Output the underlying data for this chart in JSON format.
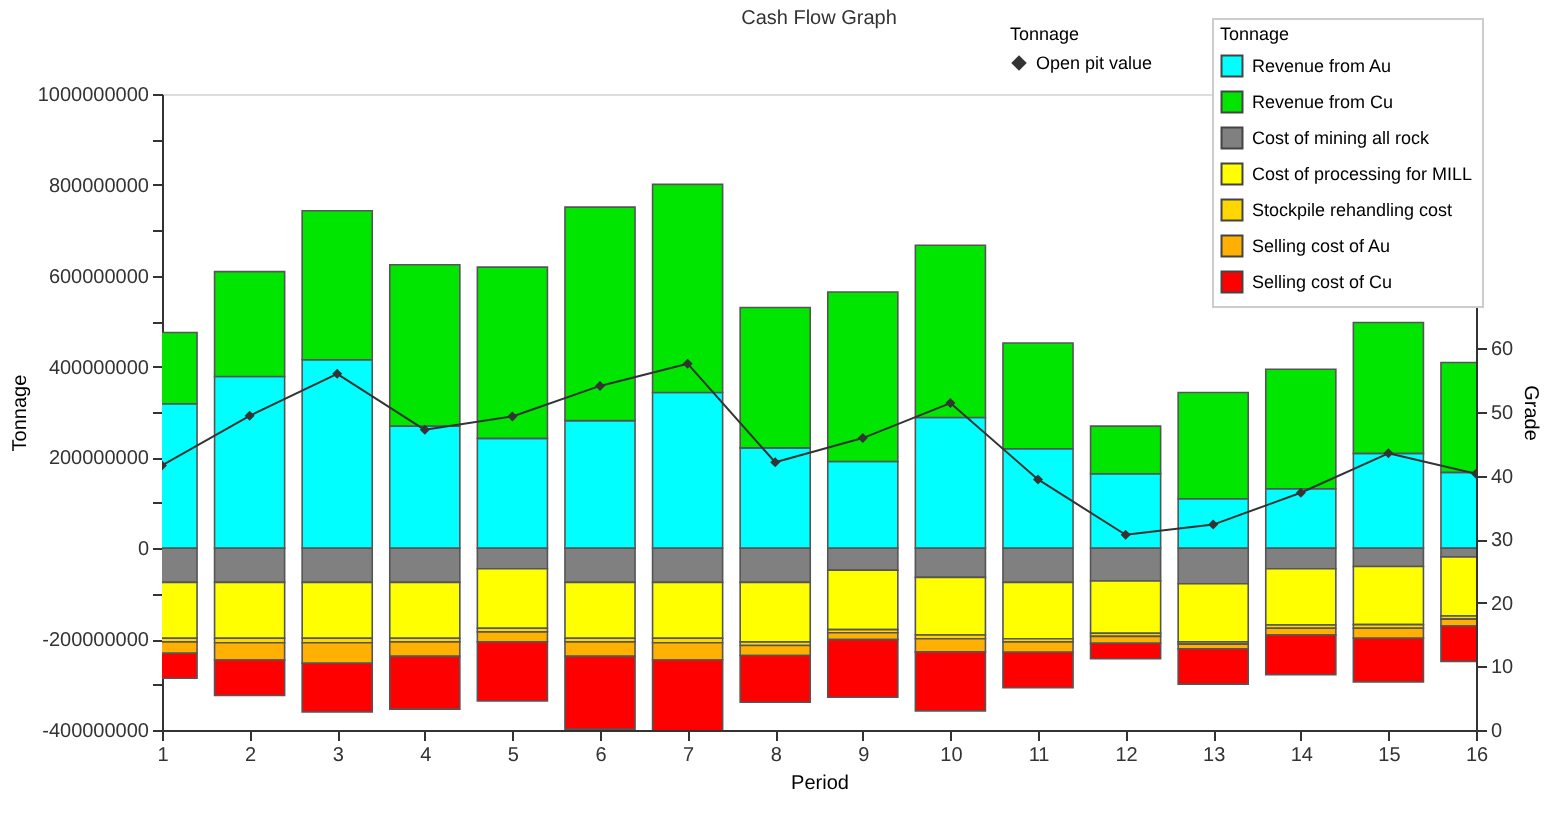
{
  "chart_data": {
    "type": "bar",
    "stacked": true,
    "title": "Cash Flow Graph",
    "xlabel": "Period",
    "ylabel": "Tonnage",
    "y2label": "Grade",
    "legend_title": "Tonnage",
    "legend": "top right",
    "grid": false,
    "x": [
      1,
      2,
      3,
      4,
      5,
      6,
      7,
      8,
      9,
      10,
      11,
      12,
      13,
      14,
      15,
      16
    ],
    "xlim": [
      1,
      16
    ],
    "xticks": [
      1,
      2,
      3,
      4,
      5,
      6,
      7,
      8,
      9,
      10,
      11,
      12,
      13,
      14,
      15,
      16
    ],
    "ylim": [
      -400000000,
      1000000000
    ],
    "yticks": [
      -400000000,
      {
        "value": -300000000,
        "label": null
      },
      -200000000,
      {
        "value": -100000000,
        "label": null
      },
      0,
      {
        "value": 100000000,
        "label": null
      },
      200000000,
      {
        "value": 300000000,
        "label": null
      },
      400000000,
      {
        "value": 500000000,
        "label": null
      },
      600000000,
      {
        "value": 700000000,
        "label": null
      },
      800000000,
      {
        "value": 900000000,
        "label": null
      },
      1000000000
    ],
    "y2lim": [
      0,
      100
    ],
    "y2ticks": [
      0,
      10,
      20,
      30,
      40,
      50,
      60
    ],
    "series": [
      {
        "name": "Revenue from Au",
        "color": "#00ffff",
        "values": [
          318000000,
          378000000,
          415000000,
          269000000,
          242000000,
          281000000,
          343000000,
          221000000,
          191000000,
          288000000,
          219000000,
          164000000,
          109000000,
          131000000,
          209000000,
          167000000
        ]
      },
      {
        "name": "Revenue from Cu",
        "color": "#00e600",
        "values": [
          157000000,
          231000000,
          328000000,
          355000000,
          377000000,
          470000000,
          458000000,
          309000000,
          373000000,
          379000000,
          233000000,
          105000000,
          234000000,
          263000000,
          288000000,
          242000000
        ]
      },
      {
        "name": "Cost of mining all rock",
        "color": "#808080",
        "values": [
          -75000000,
          -75000000,
          -75000000,
          -75000000,
          -45000000,
          -75000000,
          -75000000,
          -75000000,
          -48000000,
          -64000000,
          -75000000,
          -72000000,
          -78000000,
          -45000000,
          -40000000,
          -19000000
        ]
      },
      {
        "name": "Cost of processing for MILL",
        "color": "#ffff00",
        "values": [
          -123000000,
          -123000000,
          -123000000,
          -123000000,
          -131000000,
          -123000000,
          -123000000,
          -131000000,
          -131000000,
          -127000000,
          -124000000,
          -115000000,
          -128000000,
          -124000000,
          -128000000,
          -130000000
        ]
      },
      {
        "name": "Stockpile rehandling cost",
        "color": "#ffd700",
        "values": [
          -8000000,
          -10000000,
          -10000000,
          -8000000,
          -8000000,
          -8000000,
          -10000000,
          -8000000,
          -7000000,
          -8000000,
          -7000000,
          -7000000,
          -5000000,
          -7000000,
          -8000000,
          -7000000
        ]
      },
      {
        "name": "Selling cost of Au",
        "color": "#ffb000",
        "values": [
          -25000000,
          -38000000,
          -45000000,
          -32000000,
          -22000000,
          -32000000,
          -38000000,
          -22000000,
          -15000000,
          -29000000,
          -23000000,
          -15000000,
          -10000000,
          -15000000,
          -22000000,
          -15000000
        ]
      },
      {
        "name": "Selling cost of Cu",
        "color": "#ff0000",
        "values": [
          -55000000,
          -78000000,
          -107000000,
          -116000000,
          -130000000,
          -160000000,
          -157000000,
          -103000000,
          -127000000,
          -130000000,
          -78000000,
          -34000000,
          -78000000,
          -87000000,
          -96000000,
          -78000000
        ]
      },
      {
        "name": "Open pit value",
        "type": "line",
        "axis": "y2",
        "color": "#333333",
        "marker": "diamond",
        "values": [
          41.6,
          49.4,
          56.0,
          47.2,
          49.3,
          54.1,
          57.6,
          42.1,
          45.9,
          51.4,
          39.4,
          30.7,
          32.3,
          37.3,
          43.5,
          40.3
        ]
      }
    ]
  }
}
